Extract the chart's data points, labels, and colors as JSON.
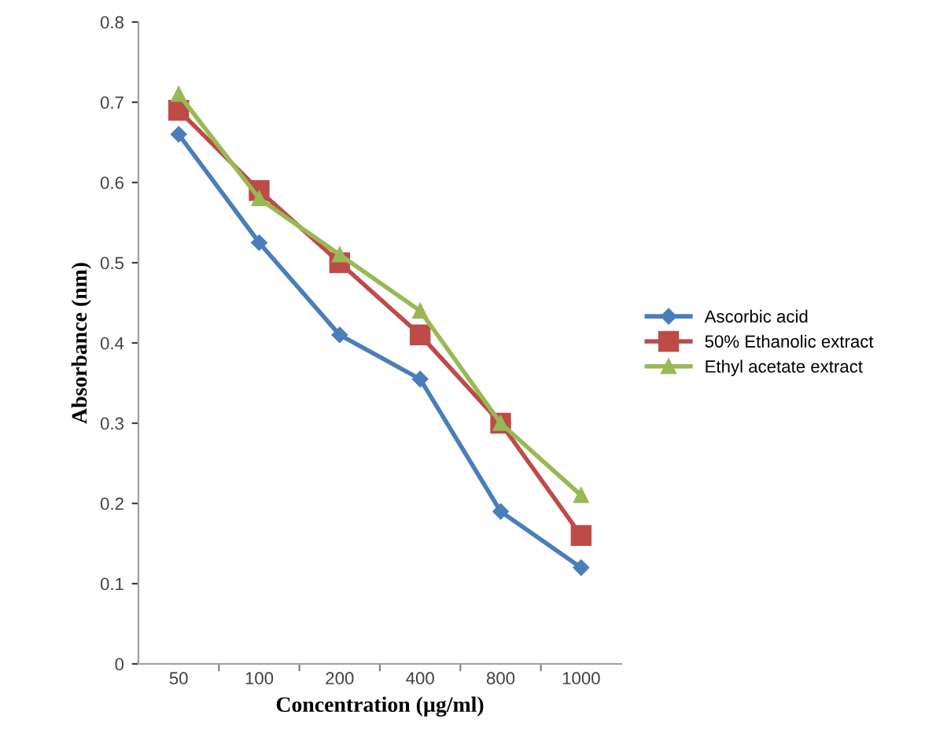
{
  "chart_data": {
    "type": "line",
    "xlabel": "Concentration (µg/ml)",
    "ylabel": "Absorbance (nm)",
    "categories": [
      "50",
      "100",
      "200",
      "400",
      "800",
      "1000"
    ],
    "series": [
      {
        "name": "Ascorbic acid",
        "color": "#4a7ebb",
        "marker": "diamond",
        "values": [
          0.66,
          0.525,
          0.41,
          0.355,
          0.19,
          0.12
        ]
      },
      {
        "name": "50% Ethanolic extract",
        "color": "#be4b48",
        "marker": "square",
        "values": [
          0.69,
          0.59,
          0.5,
          0.41,
          0.3,
          0.16
        ]
      },
      {
        "name": "Ethyl acetate extract",
        "color": "#98b954",
        "marker": "triangle",
        "values": [
          0.71,
          0.58,
          0.51,
          0.44,
          0.3,
          0.21
        ]
      }
    ],
    "ylim": [
      0,
      0.8
    ],
    "yticks": [
      0,
      0.1,
      0.2,
      0.3,
      0.4,
      0.5,
      0.6,
      0.7,
      0.8
    ],
    "grid": false,
    "legend": "right",
    "line_style": "solid"
  }
}
